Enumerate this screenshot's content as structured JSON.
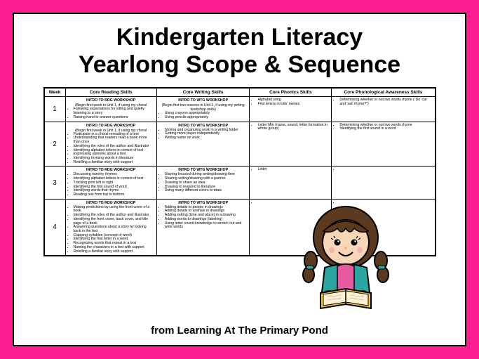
{
  "title": {
    "line1": "Kindergarten Literacy",
    "line2": "Yearlong Scope & Sequence"
  },
  "footer": "from Learning At The Primary Pond",
  "table": {
    "headers": [
      "Week",
      "Core Reading Skills",
      "Core Writing Skills",
      "Core Phonics Skills",
      "Core Phonological Awareness Skills"
    ],
    "rows": [
      {
        "week": "1",
        "reading_hdr": "INTRO TO RDG WORKSHOP",
        "reading": [
          "Following expectations for sitting and quietly listening to a story",
          "Raising hand to answer questions"
        ],
        "reading_note": "(Begin first week in Unit 1, if using my choral",
        "writing_hdr": "INTRO TO WTG WORKSHOP",
        "writing_note": "(Begin first two lessons in Unit 1, if using my writing workshop units)",
        "writing": [
          "Using crayons appropriately",
          "Using pencils appropriately"
        ],
        "phonics": [
          "Alphabet song",
          "First letters in kids' names"
        ],
        "phono": [
          "Determining whether or not two words rhyme (\"Do 'cat' and 'sat' rhyme?\")"
        ]
      },
      {
        "week": "2",
        "reading_hdr": "INTRO TO RDG WORKSHOP",
        "reading_note": "(Begin first week in Unit 1, if using my choral",
        "reading": [
          "Participate in a choral rereading of a text",
          "Understanding that readers read a book more than once",
          "Identifying the roles of the author and illustrator",
          "Identifying alphabet letters in context of text",
          "Expressing opinions about a text",
          "Identifying rhyming words in literature",
          "Retelling a familiar story with support"
        ],
        "writing_hdr": "INTRO TO WTG WORKSHOP",
        "writing": [
          "Storing and organizing work in a writing folder",
          "Getting more paper independently",
          "Writing name on work"
        ],
        "phonics": [
          "Letter Mm (name, sound, letter formation in whole group)"
        ],
        "phono": [
          "Determining whether or not two words rhyme",
          "Identifying the first sound in a word"
        ]
      },
      {
        "week": "3",
        "reading_hdr": "INTRO TO RDG WORKSHOP",
        "reading": [
          "Discussing nursery rhymes",
          "Identifying alphabet letters in context of text",
          "Tracking print left to right",
          "Identifying the first sound of word",
          "Identifying words that rhyme",
          "Reading text from top to bottom"
        ],
        "writing_hdr": "INTRO TO WTG WORKSHOP",
        "writing": [
          "Staying focused during writing/drawing time",
          "Sharing writing/drawing with a partner",
          "Drawing to share an idea",
          "Drawing to respond to literature",
          "Using many different colors to draw"
        ],
        "phonics": [
          "Letter"
        ],
        "phono": [
          ""
        ]
      },
      {
        "week": "4",
        "reading_hdr": "INTRO TO RDG WORKSHOP",
        "reading": [
          "Making predictions by using the front cover of a book",
          "Identifying the roles of the author and illustrator",
          "Identifying the front cover, back cover, and title page of a book",
          "Answering questions about a story by looking back in the text",
          "Clapping syllables (concept of word)",
          "Identifying the first letter in a word",
          "Recognizing words that repeat in a text",
          "Naming the characters in a text with support",
          "Retelling a familiar story with support"
        ],
        "writing_hdr": "INTRO TO WTG WORKSHOP",
        "writing": [
          "Adding details to people in drawings",
          "Adding details to animals in drawings",
          "Adding setting (time and place) in a drawing",
          "Adding words to drawings (labeling)",
          "Using letter sound knowledge to stretch out and write words"
        ],
        "phonics": [
          ""
        ],
        "phono": [
          ""
        ]
      }
    ]
  },
  "colors": {
    "frame": "#ff1e91",
    "border": "#000000",
    "bg": "#ffffff",
    "hair": "#5b3a1f",
    "skin": "#f8d6b8",
    "jacket": "#2aa5a0",
    "shirt": "#e85aa0",
    "book": "#f5c64a",
    "pages": "#fff1d0"
  }
}
